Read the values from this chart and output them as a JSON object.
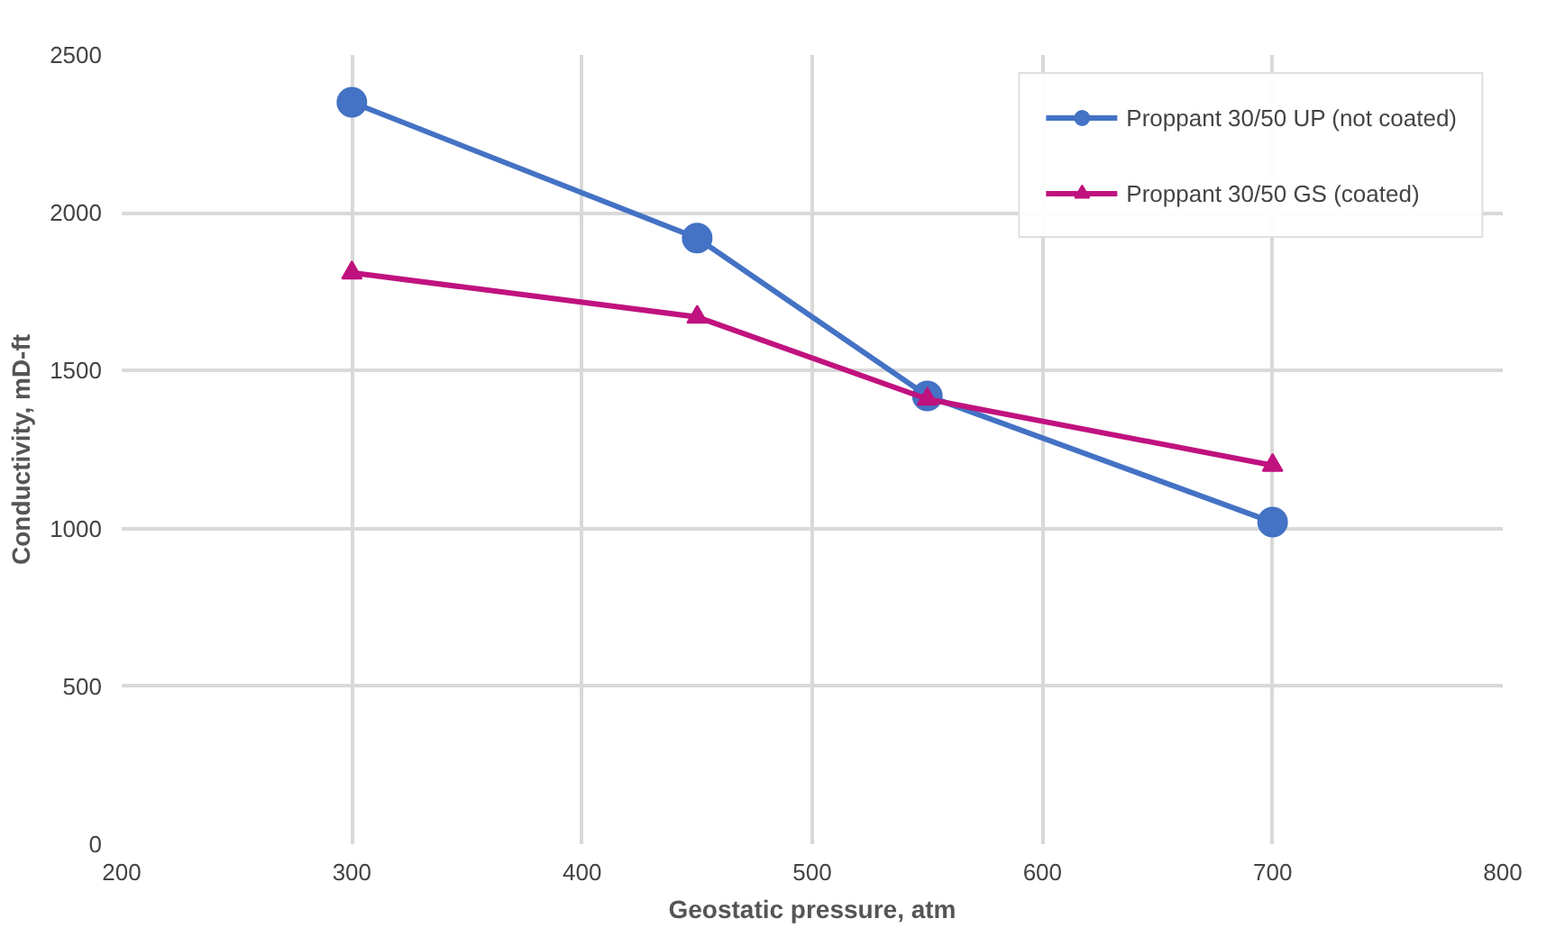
{
  "chart_data": {
    "type": "line",
    "xlabel": "Geostatic pressure, atm",
    "ylabel": "Conductivity, mD-ft",
    "x": [
      300,
      450,
      550,
      700
    ],
    "series": [
      {
        "name": "Proppant 30/50 UP (not coated)",
        "color": "#4472c4",
        "marker": "circle",
        "values": [
          2350,
          1920,
          1420,
          1020
        ]
      },
      {
        "name": "Proppant 30/50 GS (coated)",
        "color": "#c0127f",
        "marker": "triangle",
        "values": [
          1810,
          1670,
          1410,
          1200
        ]
      }
    ],
    "xlim": [
      200,
      800
    ],
    "xticks": [
      200,
      300,
      400,
      500,
      600,
      700,
      800
    ],
    "ylim": [
      0,
      2500
    ],
    "yticks": [
      0,
      500,
      1000,
      1500,
      2000,
      2500
    ],
    "grid": true,
    "legend": "top right",
    "line_style": "solid"
  }
}
